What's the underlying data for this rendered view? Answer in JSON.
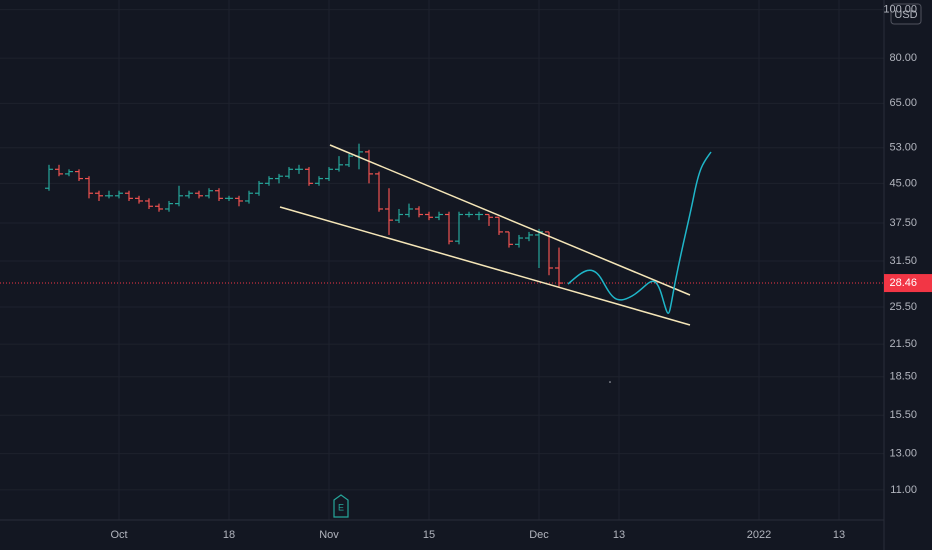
{
  "chart_data": {
    "type": "ohlc",
    "currency": "USD",
    "last_price": 28.46,
    "log_scale": true,
    "grid": true,
    "up_color": "#26a69a",
    "down_color": "#ef5350",
    "ylim": [
      9.58,
      104.5
    ],
    "yticks": [
      {
        "value": 11,
        "label": "11.00"
      },
      {
        "value": 13,
        "label": "13.00"
      },
      {
        "value": 15.5,
        "label": "15.50"
      },
      {
        "value": 18.5,
        "label": "18.50"
      },
      {
        "value": 21.5,
        "label": "21.50"
      },
      {
        "value": 25.5,
        "label": "25.50"
      },
      {
        "value": 31.5,
        "label": "31.50"
      },
      {
        "value": 37.5,
        "label": "37.50"
      },
      {
        "value": 45,
        "label": "45.00"
      },
      {
        "value": 53,
        "label": "53.00"
      },
      {
        "value": 65,
        "label": "65.00"
      },
      {
        "value": 80,
        "label": "80.00"
      },
      {
        "value": 100,
        "label": "100.00"
      }
    ],
    "categories": [
      null,
      null,
      null,
      null,
      null,
      null,
      null,
      "Oct",
      null,
      null,
      null,
      null,
      null,
      null,
      null,
      null,
      null,
      null,
      "18",
      null,
      null,
      null,
      null,
      null,
      null,
      null,
      null,
      null,
      "Nov",
      null,
      null,
      null,
      null,
      null,
      null,
      null,
      null,
      null,
      "15",
      null,
      null,
      null,
      null,
      null,
      null,
      null,
      null,
      null,
      null,
      "Dec",
      null,
      null,
      null,
      null,
      null,
      null,
      null,
      "13",
      null,
      null,
      null,
      null,
      null,
      null,
      null,
      null,
      null,
      null,
      null,
      null,
      null,
      "2022",
      null,
      null,
      null,
      null,
      null,
      null,
      null,
      "13",
      null,
      null,
      null,
      null
    ],
    "open": [
      44,
      48,
      47,
      47.5,
      46,
      43,
      42.5,
      42.5,
      43,
      42,
      41.5,
      40.5,
      40,
      41,
      42.5,
      43,
      42.5,
      43.5,
      42,
      42,
      41.5,
      43,
      45,
      46,
      46.5,
      48,
      48,
      45,
      46,
      48,
      49,
      51,
      52,
      47,
      40,
      38,
      39,
      40,
      39,
      38.5,
      39,
      34.5,
      39,
      39,
      39,
      38.5,
      36,
      34,
      35,
      35.5,
      36,
      30.5,
      null,
      null,
      null,
      null,
      null,
      null,
      null,
      null,
      null,
      null,
      null,
      null,
      null,
      null,
      null,
      null,
      null,
      null,
      null,
      null,
      null,
      null,
      null,
      null,
      null,
      null,
      null,
      null,
      null,
      null,
      null,
      null
    ],
    "high": [
      49,
      49,
      48,
      48,
      46.5,
      43.5,
      43.5,
      43.5,
      43.5,
      42.5,
      42,
      41,
      41.5,
      44.5,
      43.5,
      43.5,
      44,
      44,
      42.5,
      42.5,
      43.5,
      45.5,
      46.5,
      47,
      48.5,
      49,
      48.5,
      46.5,
      48.5,
      51,
      51.5,
      54,
      52.5,
      47.5,
      44,
      40,
      41,
      40.5,
      39.5,
      39.5,
      39.5,
      39.5,
      39.5,
      39.5,
      39,
      38.5,
      36,
      35.5,
      36,
      36.5,
      36,
      33.5,
      null,
      null,
      null,
      null,
      null,
      null,
      null,
      null,
      null,
      null,
      null,
      null,
      null,
      null,
      null,
      null,
      null,
      null,
      null,
      null,
      null,
      null,
      null,
      null,
      null,
      null,
      null,
      null,
      null,
      null,
      null,
      null
    ],
    "low": [
      43.5,
      46.5,
      46.5,
      45.5,
      42,
      41.5,
      42,
      42,
      41.5,
      41,
      40,
      39.5,
      39.5,
      40.5,
      42,
      42,
      42,
      41.5,
      41.5,
      40.5,
      41,
      42.5,
      44.5,
      45,
      46,
      47,
      44.5,
      44.5,
      45.5,
      47.5,
      48.5,
      48,
      45,
      39.5,
      35.5,
      37.5,
      38.5,
      38.5,
      38,
      38,
      34,
      34,
      38.5,
      38,
      37,
      35.5,
      33.5,
      33.5,
      34.5,
      30.5,
      29.5,
      28,
      null,
      null,
      null,
      null,
      null,
      null,
      null,
      null,
      null,
      null,
      null,
      null,
      null,
      null,
      null,
      null,
      null,
      null,
      null,
      null,
      null,
      null,
      null,
      null,
      null,
      null,
      null,
      null,
      null,
      null,
      null,
      null
    ],
    "close": [
      48,
      47,
      47.5,
      46,
      43,
      42.5,
      42.5,
      43,
      42,
      41.5,
      40.5,
      40,
      41,
      42.5,
      43,
      42.5,
      43.5,
      42,
      42,
      41.5,
      43,
      45,
      46,
      46.5,
      48,
      48,
      45,
      46,
      48,
      49,
      51,
      52,
      47,
      40,
      38,
      39,
      40,
      39,
      38.5,
      39,
      34.5,
      39,
      39,
      39,
      38.5,
      36,
      34,
      35,
      35.5,
      36,
      30.5,
      28.46,
      null,
      null,
      null,
      null,
      null,
      null,
      null,
      null,
      null,
      null,
      null,
      null,
      null,
      null,
      null,
      null,
      null,
      null,
      null,
      null,
      null,
      null,
      null,
      null,
      null,
      null,
      null,
      null,
      null,
      null,
      null,
      null
    ]
  }
}
